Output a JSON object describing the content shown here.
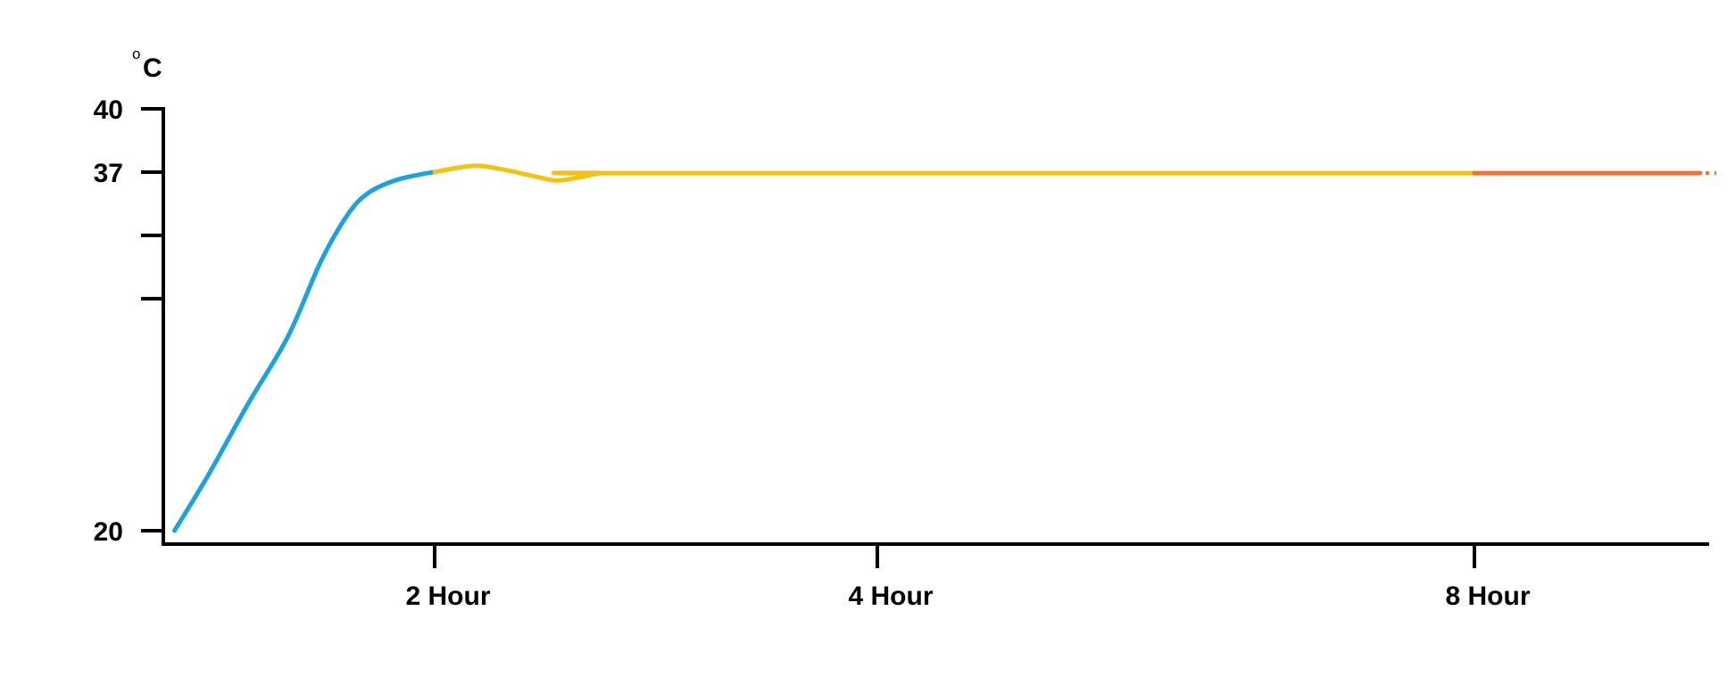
{
  "chart_data": {
    "type": "line",
    "title": "",
    "xlabel": "",
    "ylabel": "",
    "y_unit": {
      "degree": "o",
      "letter": "C"
    },
    "ylim": [
      20,
      40
    ],
    "y_ticks": [
      {
        "value": 40,
        "label": "40"
      },
      {
        "value": 37,
        "label": "37"
      },
      {
        "value": 34,
        "label": ""
      },
      {
        "value": 31,
        "label": ""
      },
      {
        "value": 20,
        "label": "20"
      }
    ],
    "x_ticks": [
      {
        "value": 2,
        "label": "2 Hour"
      },
      {
        "value": 4,
        "label": "4 Hour"
      },
      {
        "value": 8,
        "label": "8 Hour"
      }
    ],
    "xlim": [
      0,
      10.6
    ],
    "grid": false,
    "series": [
      {
        "color": "#1aa3e0",
        "points": [
          [
            0.05,
            20.0
          ],
          [
            0.3,
            22.6
          ],
          [
            0.6,
            26.0
          ],
          [
            0.9,
            29.2
          ],
          [
            1.15,
            32.8
          ],
          [
            1.35,
            35.0
          ],
          [
            1.5,
            36.0
          ],
          [
            1.7,
            36.6
          ],
          [
            1.9,
            36.9
          ],
          [
            2.0,
            37.0
          ]
        ]
      },
      {
        "color": "#f5c211",
        "points": [
          [
            2.0,
            37.0
          ],
          [
            2.1,
            37.2
          ],
          [
            2.2,
            37.3
          ],
          [
            2.32,
            37.1
          ],
          [
            2.45,
            36.8
          ],
          [
            2.55,
            36.6
          ],
          [
            2.65,
            36.75
          ],
          [
            2.75,
            36.95
          ],
          [
            2.85,
            36.95
          ],
          [
            8.0,
            36.95
          ]
        ]
      },
      {
        "color": "#ed7233",
        "points": [
          [
            8.0,
            36.95
          ],
          [
            10.5,
            36.95
          ]
        ]
      }
    ],
    "continuation": {
      "color": "#ed7233",
      "dotted": true,
      "from": 10.5,
      "to": 10.6,
      "y": 36.95
    }
  }
}
